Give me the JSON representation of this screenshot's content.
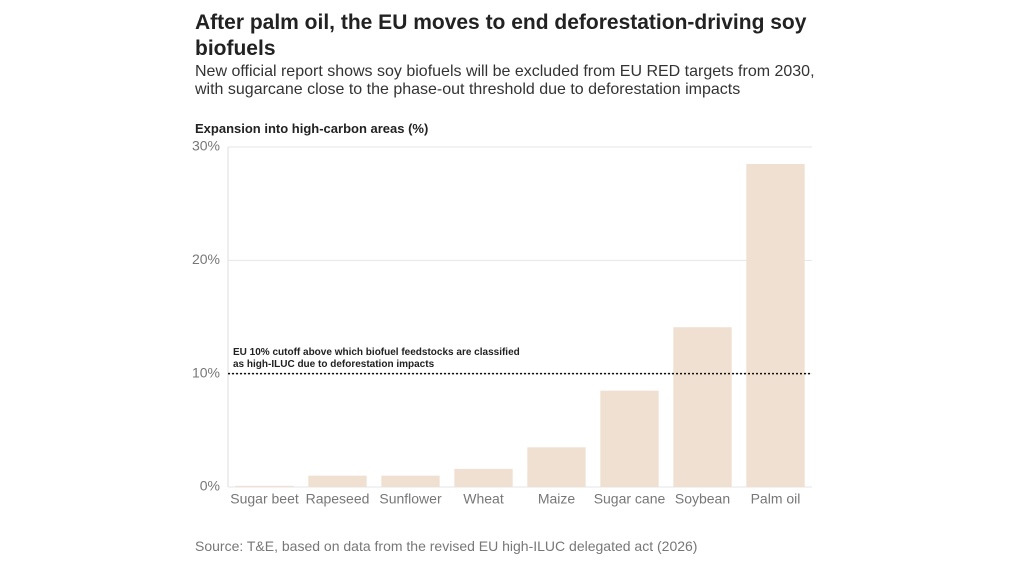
{
  "chart_data": {
    "type": "bar",
    "title": "After palm oil, the EU moves to end deforestation-driving soy biofuels",
    "subtitle": "New official report shows soy biofuels will be excluded from EU RED targets from 2030, with sugarcane close to the phase-out threshold due to deforestation impacts",
    "y_label": "Expansion into high-carbon areas (%)",
    "categories": [
      "Sugar beet",
      "Rapeseed",
      "Sunflower",
      "Wheat",
      "Maize",
      "Sugar cane",
      "Soybean",
      "Palm oil"
    ],
    "values": [
      0.1,
      1.0,
      1.0,
      1.6,
      3.5,
      8.5,
      14.1,
      28.5
    ],
    "color": "#f0e0d2",
    "ylim": [
      0,
      30
    ],
    "yticks": [
      {
        "value": 0,
        "label": "0%"
      },
      {
        "value": 10,
        "label": "10%"
      },
      {
        "value": 20,
        "label": "20%"
      },
      {
        "value": 30,
        "label": "30%"
      }
    ],
    "grid": true,
    "threshold": 10,
    "threshold_annotation": "EU 10% cutoff above which biofuel feedstocks are classified as high-ILUC due to deforestation impacts",
    "source": "Source: T&E, based on data from the revised EU high-ILUC delegated act (2026)"
  }
}
